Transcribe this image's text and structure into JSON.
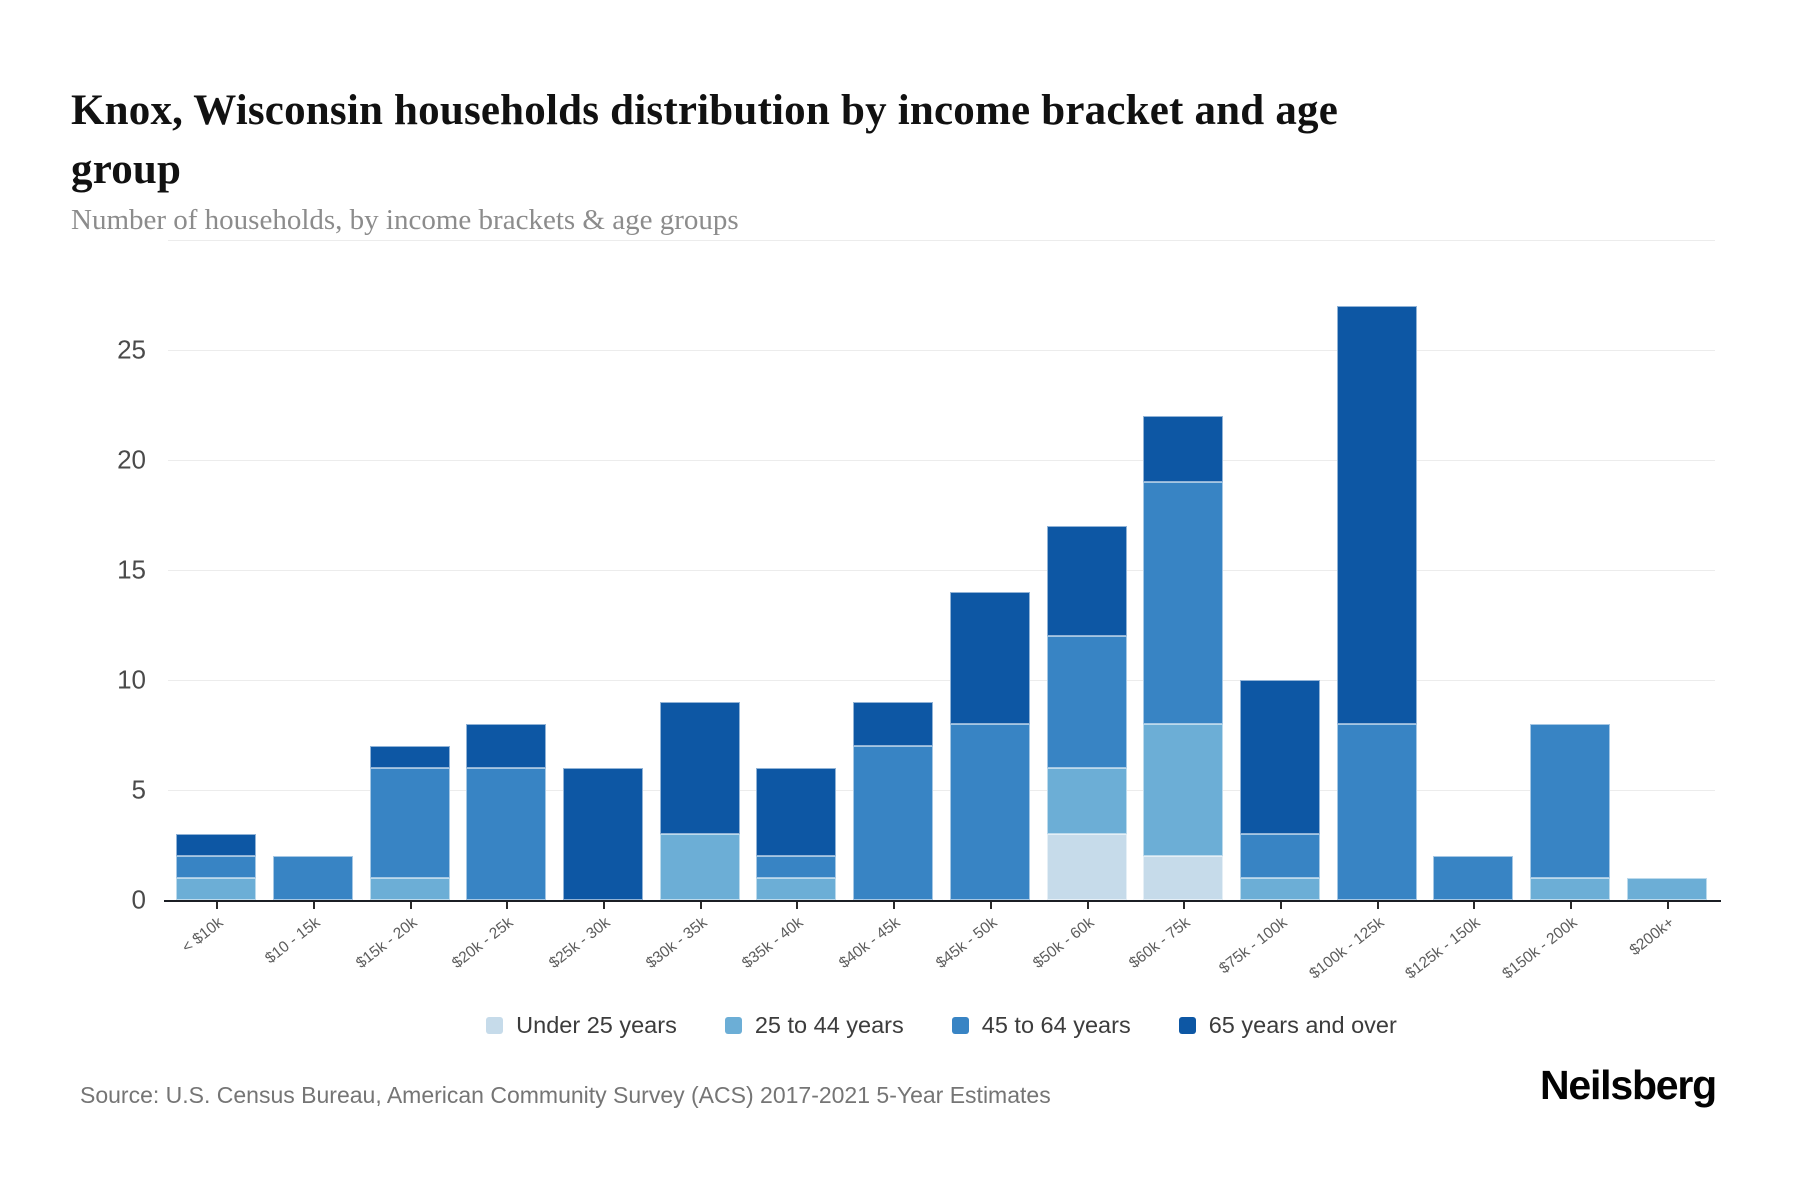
{
  "header": {
    "title": "Knox, Wisconsin households distribution by income bracket and age group",
    "subtitle": "Number of households, by income brackets & age groups"
  },
  "chart_data": {
    "type": "bar",
    "stacked": true,
    "title": "Knox, Wisconsin households distribution by income bracket and age group",
    "subtitle": "Number of households, by income brackets & age groups",
    "categories": [
      "< $10k",
      "$10 - 15k",
      "$15k - 20k",
      "$20k - 25k",
      "$25k - 30k",
      "$30k - 35k",
      "$35k - 40k",
      "$40k - 45k",
      "$45k - 50k",
      "$50k - 60k",
      "$60k - 75k",
      "$75k - 100k",
      "$100k - 125k",
      "$125k - 150k",
      "$150k - 200k",
      "$200k+"
    ],
    "series": [
      {
        "name": "Under 25 years",
        "color": "#c6dbea",
        "values": [
          0,
          0,
          0,
          0,
          0,
          0,
          0,
          0,
          0,
          3,
          2,
          0,
          0,
          0,
          0,
          0
        ]
      },
      {
        "name": "25 to 44 years",
        "color": "#6caed6",
        "values": [
          1,
          0,
          1,
          0,
          0,
          3,
          1,
          0,
          0,
          3,
          6,
          1,
          0,
          0,
          1,
          1
        ]
      },
      {
        "name": "45 to 64 years",
        "color": "#3884c4",
        "values": [
          1,
          2,
          5,
          6,
          0,
          0,
          1,
          7,
          8,
          6,
          11,
          2,
          8,
          2,
          7,
          0
        ]
      },
      {
        "name": "65 years and over",
        "color": "#0d57a4",
        "values": [
          1,
          0,
          1,
          2,
          6,
          6,
          4,
          2,
          6,
          5,
          3,
          7,
          19,
          0,
          0,
          0
        ]
      }
    ],
    "totals": [
      3,
      2,
      7,
      8,
      6,
      9,
      6,
      9,
      14,
      17,
      22,
      10,
      27,
      2,
      8,
      1
    ],
    "xlabel": "",
    "ylabel": "",
    "y_ticks": [
      0,
      5,
      10,
      15,
      20,
      25
    ],
    "ylim": [
      0,
      30
    ],
    "grid": true,
    "legend_position": "bottom"
  },
  "footer": {
    "source": "Source: U.S. Census Bureau, American Community Survey (ACS) 2017-2021 5-Year Estimates",
    "brand": "Neilsberg"
  }
}
